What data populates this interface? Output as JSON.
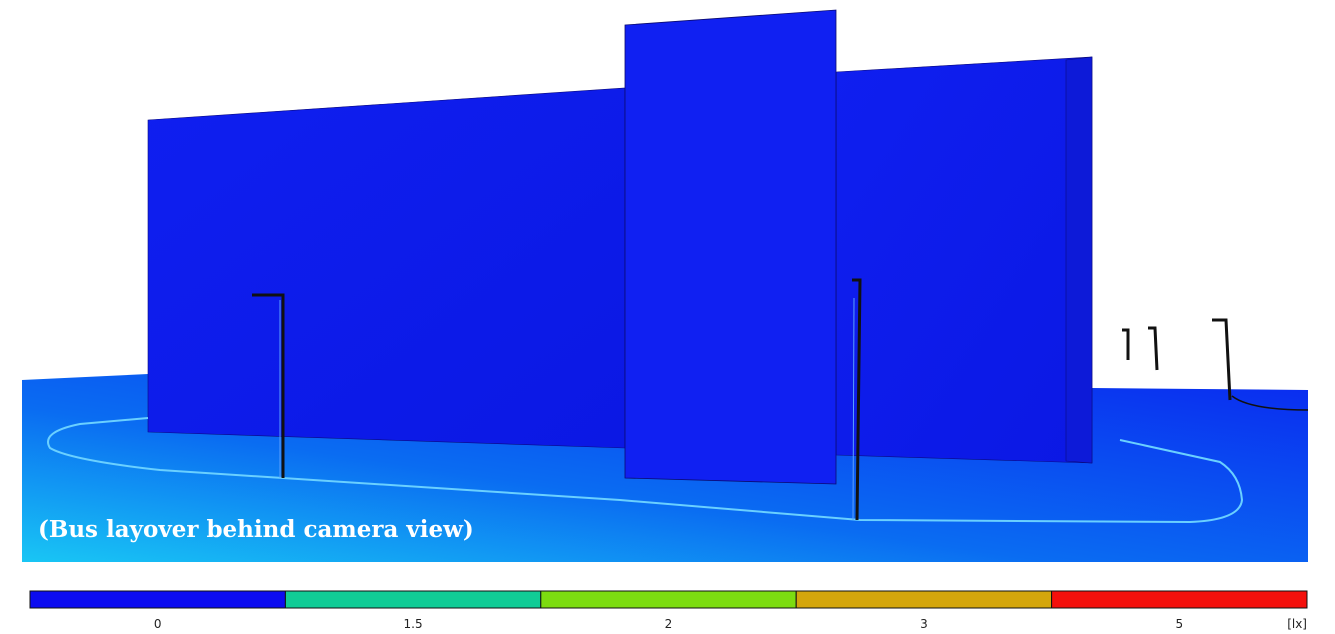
{
  "caption": "(Bus layover behind camera view)",
  "legend": {
    "items": [
      {
        "label": "0",
        "color": "#0c0cf0"
      },
      {
        "label": "1.5",
        "color": "#10cc96"
      },
      {
        "label": "2",
        "color": "#7cdc10"
      },
      {
        "label": "3",
        "color": "#d4a60c"
      },
      {
        "label": "5",
        "color": "#f4100c"
      }
    ],
    "unit": "[lx]"
  }
}
